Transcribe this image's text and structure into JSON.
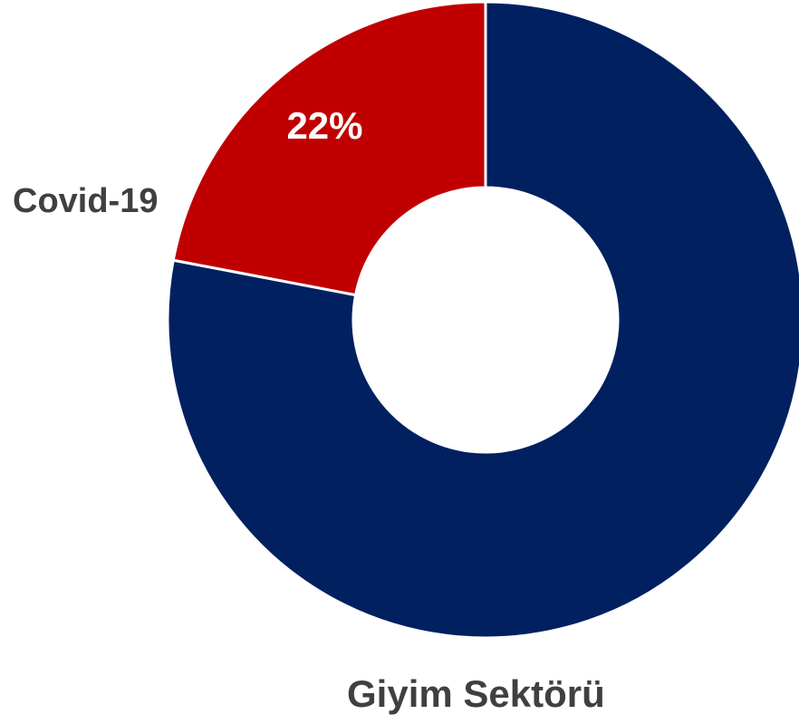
{
  "chart_data": {
    "type": "donut",
    "slices": [
      {
        "label": "Covid-19",
        "value": 22,
        "value_label": "22%",
        "color": "#c00000"
      },
      {
        "label": "Giyim Sektörü",
        "value": 78,
        "value_label": "",
        "color": "#002060"
      }
    ],
    "legend": "none",
    "start_angle_deg": 0,
    "direction": "counterclockwise"
  }
}
